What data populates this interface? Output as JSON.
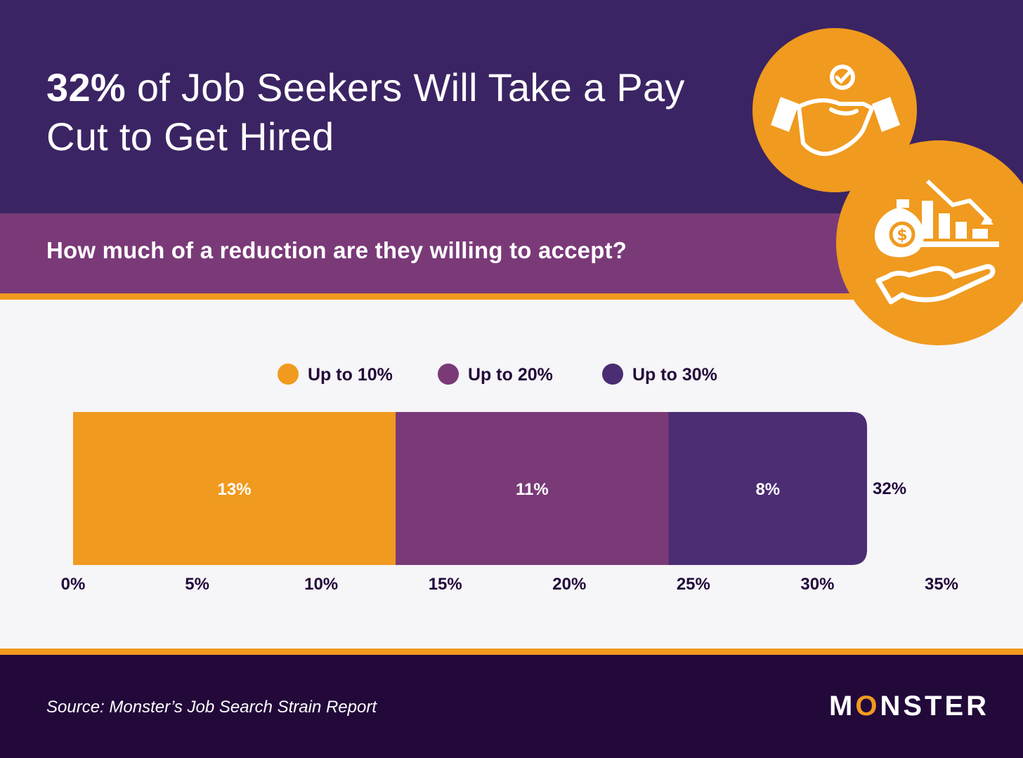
{
  "header": {
    "title_highlight": "32%",
    "title_rest": " of Job Seekers Will Take a Pay Cut to Get Hired",
    "subtitle": "How much of a reduction are they willing to accept?"
  },
  "footer": {
    "source": "Source: Monster’s Job Search Strain Report",
    "logo_pre": "M",
    "logo_o": "O",
    "logo_post": "NSTER"
  },
  "icons": {
    "badge_top": "handshake-check-icon",
    "badge_bottom": "money-bag-hand-declining-chart-icon"
  },
  "colors": {
    "orange": "#f09a1f",
    "plum": "#7a3a78",
    "purple": "#4b2d73",
    "header": "#3b2463",
    "footer": "#22093a"
  },
  "chart_data": {
    "type": "bar",
    "orientation": "horizontal",
    "stacked": true,
    "categories": [
      ""
    ],
    "series": [
      {
        "name": "Up to 10%",
        "values": [
          13
        ],
        "label": "13%",
        "color": "#f09a1f"
      },
      {
        "name": "Up to 20%",
        "values": [
          11
        ],
        "label": "11%",
        "color": "#7a3a78"
      },
      {
        "name": "Up to 30%",
        "values": [
          8
        ],
        "label": "8%",
        "color": "#4b2d73"
      }
    ],
    "total_label": "32%",
    "xlim": [
      0,
      35
    ],
    "xticks": [
      0,
      5,
      10,
      15,
      20,
      25,
      30,
      35
    ],
    "xtick_labels": [
      "0%",
      "5%",
      "10%",
      "15%",
      "20%",
      "25%",
      "30%",
      "35%"
    ],
    "legend": "top-center",
    "grid": false
  }
}
